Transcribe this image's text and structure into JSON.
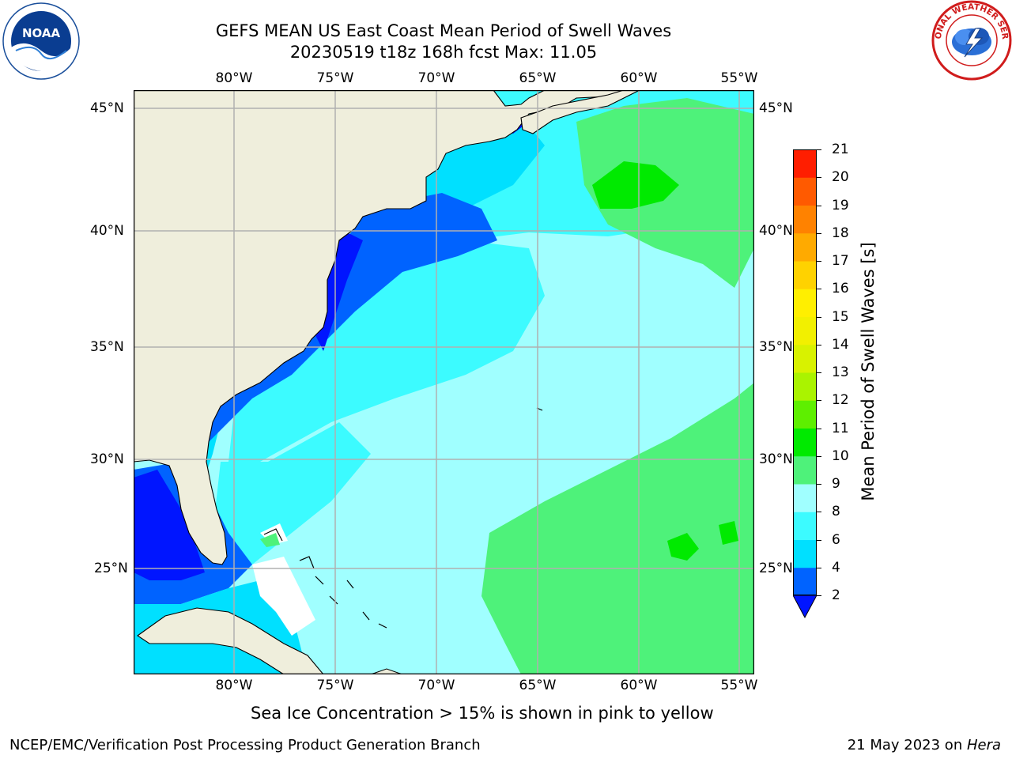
{
  "title": {
    "line1": "GEFS MEAN US East Coast Mean Period of Swell Waves",
    "line2": "20230519 t18z 168h fcst   Max: 11.05"
  },
  "map": {
    "lon_labels": [
      "80°W",
      "75°W",
      "70°W",
      "65°W",
      "60°W",
      "55°W"
    ],
    "lat_labels": [
      "45°N",
      "40°N",
      "35°N",
      "30°N",
      "25°N"
    ],
    "grid": true,
    "colors": {
      "land": "#efeedc",
      "ice_free_gap": "#ffffff",
      "grid": "#b0b0b0"
    }
  },
  "colorbar": {
    "label": "Mean Period of Swell Waves [s]",
    "ticks": [
      "2",
      "4",
      "6",
      "8",
      "9",
      "10",
      "11",
      "12",
      "13",
      "14",
      "15",
      "16",
      "17",
      "18",
      "19",
      "20",
      "21"
    ],
    "levels": [
      2,
      4,
      6,
      8,
      9,
      10,
      11,
      12,
      13,
      14,
      15,
      16,
      17,
      18,
      19,
      20,
      21
    ],
    "colors": [
      "#0063ff",
      "#00e0ff",
      "#3cfbff",
      "#a0ffff",
      "#4ef27a",
      "#00ea00",
      "#5eef00",
      "#aaf300",
      "#d8f200",
      "#f2f000",
      "#ffef00",
      "#ffd200",
      "#ffaa00",
      "#ff8200",
      "#ff5a00",
      "#ff1e00"
    ],
    "under_color": "#0015ff"
  },
  "field_colors": {
    "period_under_2": "#0015ff",
    "period_2_4": "#0063ff",
    "period_4_6": "#00e0ff",
    "period_6_8": "#3cfbff",
    "period_8_9": "#a0ffff",
    "period_9_10": "#4ef27a",
    "period_10_11": "#00ea00"
  },
  "footnote": "Sea Ice Concentration > 15% is shown in pink to yellow",
  "credit": "NCEP/EMC/Verification Post Processing Product Generation Branch",
  "date": {
    "text": "21 May 2023 on ",
    "host": "Hera"
  },
  "logos": {
    "left": {
      "icon": "noaa-logo",
      "text": "NOAA"
    },
    "right": {
      "icon": "nws-logo",
      "text": "NATIONAL WEATHER SERVICE"
    }
  }
}
